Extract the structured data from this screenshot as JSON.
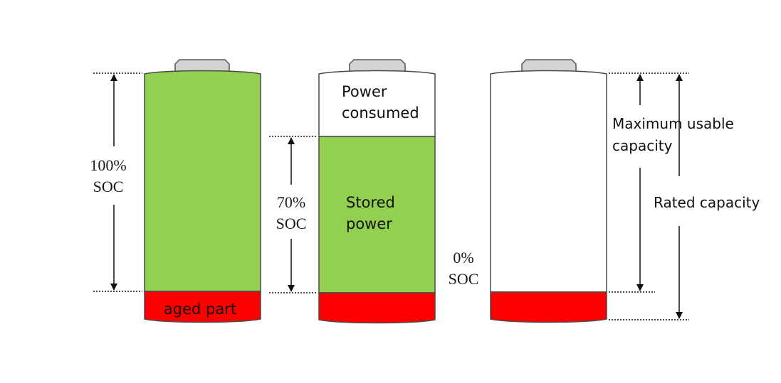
{
  "colors": {
    "stored": "#92d050",
    "aged": "#ff0000",
    "outline": "#4a4a4a",
    "cap": "#d4d4d4",
    "text": "#1a1a1a"
  },
  "batteries": [
    {
      "id": "full",
      "soc_label_top": "100%",
      "soc_label_bottom": "SOC",
      "inner_label": "aged part"
    },
    {
      "id": "partial",
      "soc_label_top": "70%",
      "soc_label_bottom": "SOC",
      "consumed_label_line1": "Power",
      "consumed_label_line2": "consumed",
      "stored_label_line1": "Stored",
      "stored_label_line2": "power"
    },
    {
      "id": "empty",
      "soc_label_top": "0%",
      "soc_label_bottom": "SOC",
      "max_usable_line1": "Maximum usable",
      "max_usable_line2": "capacity",
      "rated_label": "Rated capacity"
    }
  ]
}
